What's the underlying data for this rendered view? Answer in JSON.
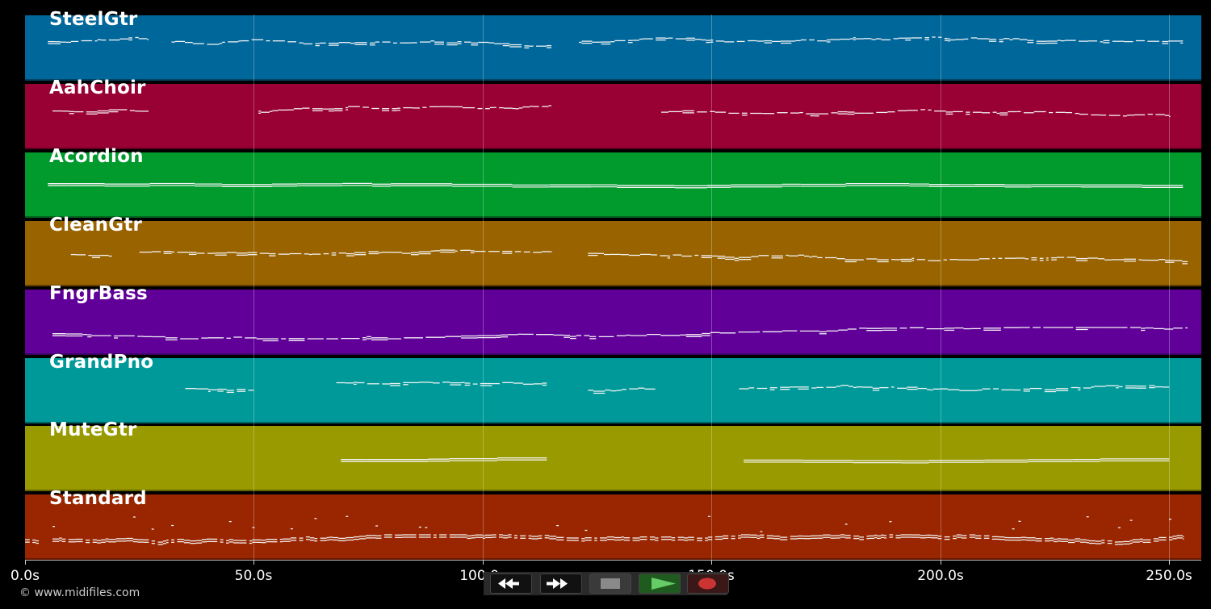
{
  "time_axis": {
    "unit": "s",
    "min": 0,
    "max": 257,
    "ticks": [
      {
        "value": 0,
        "label": "0.0s"
      },
      {
        "value": 50,
        "label": "50.0s"
      },
      {
        "value": 100,
        "label": "100.0s"
      },
      {
        "value": 150,
        "label": "150.0s"
      },
      {
        "value": 200,
        "label": "200.0s"
      },
      {
        "value": 250,
        "label": "250.0s"
      }
    ]
  },
  "tracks": [
    {
      "name": "SteelGtr",
      "color": "#00679b",
      "pattern": "melody",
      "segments": [
        [
          5,
          27
        ],
        [
          32,
          115
        ],
        [
          121,
          253
        ]
      ]
    },
    {
      "name": "AahChoir",
      "color": "#990033",
      "pattern": "melody",
      "segments": [
        [
          6,
          27
        ],
        [
          51,
          115
        ],
        [
          139,
          250
        ]
      ]
    },
    {
      "name": "Acordion",
      "color": "#009a2d",
      "pattern": "sustain",
      "segments": [
        [
          5,
          253
        ]
      ]
    },
    {
      "name": "CleanGtr",
      "color": "#996300",
      "pattern": "scatter",
      "segments": [
        [
          10,
          19
        ],
        [
          25,
          115
        ],
        [
          123,
          254
        ]
      ]
    },
    {
      "name": "FngrBass",
      "color": "#600099",
      "pattern": "bass",
      "segments": [
        [
          6,
          254
        ]
      ]
    },
    {
      "name": "GrandPno",
      "color": "#009999",
      "pattern": "melody",
      "segments": [
        [
          35,
          50
        ],
        [
          68,
          114
        ],
        [
          123,
          138
        ],
        [
          156,
          250
        ]
      ]
    },
    {
      "name": "MuteGtr",
      "color": "#999900",
      "pattern": "sustain",
      "segments": [
        [
          69,
          114
        ],
        [
          157,
          250
        ]
      ]
    },
    {
      "name": "Standard",
      "color": "#992600",
      "pattern": "drums",
      "segments": [
        [
          0,
          3
        ],
        [
          6,
          26
        ],
        [
          26,
          253
        ]
      ]
    }
  ],
  "credit": "© www.midifiles.com",
  "transport": [
    {
      "name": "rewind-icon",
      "color": "#ffffff"
    },
    {
      "name": "fast-forward-icon",
      "color": "#ffffff"
    },
    {
      "name": "stop-icon",
      "color": "#8a8a8a"
    },
    {
      "name": "play-icon",
      "color": "#66cc66"
    },
    {
      "name": "record-icon",
      "color": "#cc3333"
    }
  ]
}
